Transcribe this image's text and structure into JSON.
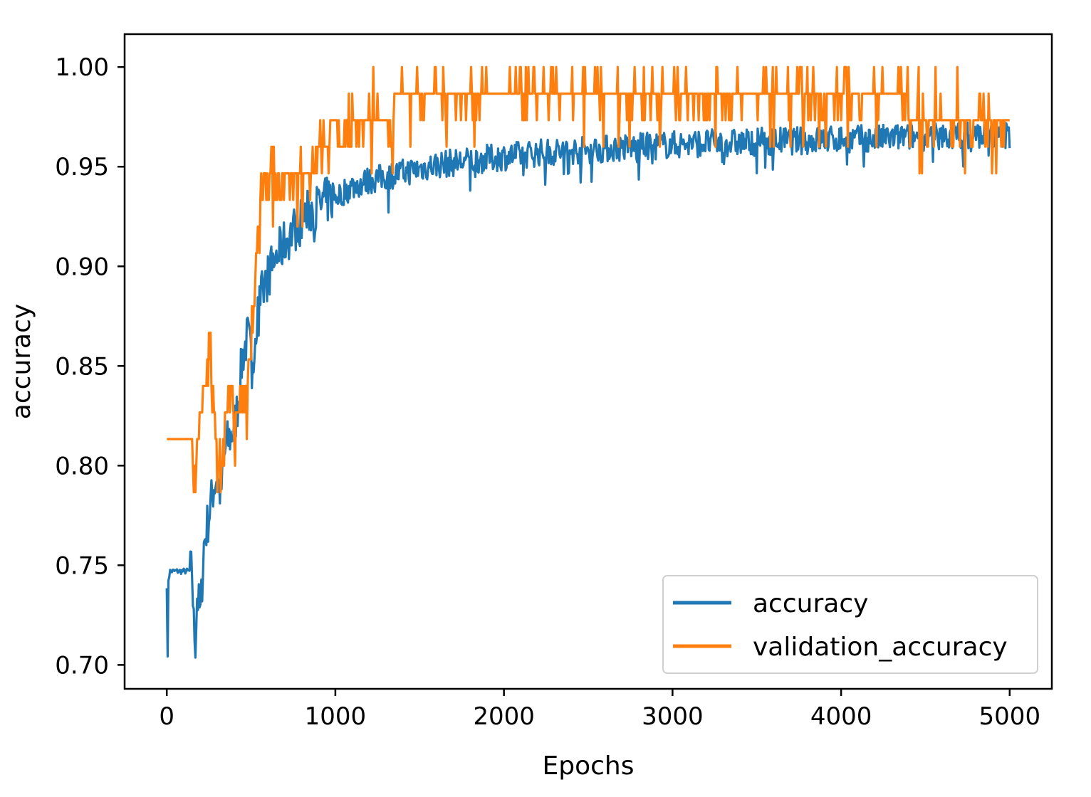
{
  "chart_data": {
    "type": "line",
    "title": "",
    "xlabel": "Epochs",
    "ylabel": "accuracy",
    "xlim": [
      -250,
      5250
    ],
    "ylim": [
      0.688,
      1.0165
    ],
    "xticks": [
      0,
      1000,
      2000,
      3000,
      4000,
      5000
    ],
    "xtick_labels": [
      "0",
      "1000",
      "2000",
      "3000",
      "4000",
      "5000"
    ],
    "yticks": [
      0.7,
      0.75,
      0.8,
      0.85,
      0.9,
      0.95,
      1.0
    ],
    "ytick_labels": [
      "0.70",
      "0.75",
      "0.80",
      "0.85",
      "0.90",
      "0.95",
      "1.00"
    ],
    "grid": false,
    "legend": {
      "position": "bottom-right"
    },
    "series": [
      {
        "name": "accuracy",
        "color": "#1f77b4",
        "x": [
          0,
          5,
          10,
          20,
          50,
          100,
          150,
          160,
          170,
          180,
          200,
          220,
          250,
          280,
          300,
          320,
          350,
          380,
          400,
          420,
          450,
          480,
          500,
          520,
          540,
          560,
          580,
          600,
          650,
          700,
          750,
          800,
          850,
          900,
          950,
          1000,
          1100,
          1200,
          1300,
          1400,
          1500,
          1600,
          1800,
          2000,
          2200,
          2400,
          2600,
          2800,
          3000,
          3200,
          3400,
          3600,
          3800,
          4000,
          4200,
          4400,
          4600,
          4800,
          5000
        ],
        "y": [
          0.74,
          0.703,
          0.743,
          0.747,
          0.747,
          0.747,
          0.747,
          0.72,
          0.712,
          0.735,
          0.725,
          0.76,
          0.775,
          0.79,
          0.795,
          0.785,
          0.81,
          0.815,
          0.818,
          0.83,
          0.855,
          0.865,
          0.855,
          0.86,
          0.875,
          0.885,
          0.89,
          0.895,
          0.905,
          0.912,
          0.918,
          0.923,
          0.928,
          0.93,
          0.933,
          0.935,
          0.94,
          0.943,
          0.945,
          0.947,
          0.949,
          0.951,
          0.953,
          0.955,
          0.957,
          0.958,
          0.959,
          0.96,
          0.961,
          0.962,
          0.962,
          0.963,
          0.963,
          0.964,
          0.964,
          0.965,
          0.965,
          0.966,
          0.966
        ]
      },
      {
        "name": "validation_accuracy",
        "color": "#ff7f0e",
        "x": [
          0,
          50,
          100,
          150,
          160,
          170,
          180,
          200,
          230,
          260,
          280,
          300,
          320,
          350,
          380,
          400,
          430,
          460,
          500,
          510,
          520,
          540,
          560,
          580,
          600,
          650,
          700,
          750,
          800,
          850,
          900,
          950,
          1000,
          1050,
          1100,
          1150,
          1200,
          1250,
          1300,
          1350,
          1400,
          1500,
          1600,
          1800,
          2000,
          2200,
          2400,
          2600,
          2800,
          3000,
          3200,
          3400,
          3600,
          3800,
          4000,
          4200,
          4400,
          4600,
          4800,
          5000
        ],
        "y": [
          0.813,
          0.813,
          0.813,
          0.813,
          0.8,
          0.787,
          0.813,
          0.827,
          0.84,
          0.853,
          0.827,
          0.8,
          0.787,
          0.827,
          0.84,
          0.827,
          0.827,
          0.84,
          0.853,
          0.867,
          0.893,
          0.92,
          0.933,
          0.947,
          0.947,
          0.94,
          0.947,
          0.94,
          0.947,
          0.94,
          0.96,
          0.96,
          0.973,
          0.96,
          0.967,
          0.973,
          0.973,
          0.98,
          0.973,
          0.98,
          0.987,
          0.987,
          0.987,
          0.98,
          0.987,
          0.98,
          0.98,
          0.987,
          0.98,
          0.98,
          0.98,
          0.98,
          0.987,
          0.98,
          0.98,
          0.98,
          0.98,
          0.973,
          0.973,
          0.973
        ]
      }
    ]
  }
}
